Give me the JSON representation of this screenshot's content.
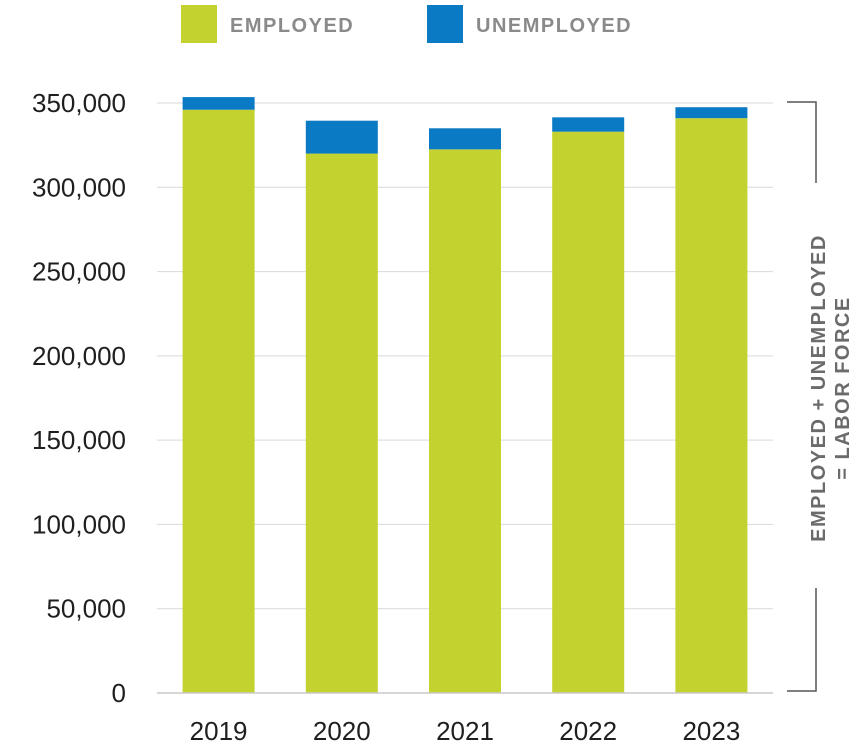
{
  "chart_data": {
    "type": "bar",
    "stacked": true,
    "categories": [
      "2019",
      "2020",
      "2021",
      "2022",
      "2023"
    ],
    "series": [
      {
        "name": "EMPLOYED",
        "color": "#c4d22f",
        "values": [
          346000,
          320000,
          322500,
          333000,
          341000
        ]
      },
      {
        "name": "UNEMPLOYED",
        "color": "#0b7ac4",
        "values": [
          7500,
          19500,
          12500,
          8500,
          6500
        ]
      }
    ],
    "ylim": [
      0,
      350000
    ],
    "yticks": [
      "0",
      "50,000",
      "100,000",
      "150,000",
      "200,000",
      "250,000",
      "300,000",
      "350,000"
    ],
    "ytick_values": [
      0,
      50000,
      100000,
      150000,
      200000,
      250000,
      300000,
      350000
    ],
    "grid": true,
    "legend_position": "top",
    "annotation": {
      "line1": "EMPLOYED + UNEMPLOYED",
      "line2": "= LABOR FORCE"
    }
  }
}
